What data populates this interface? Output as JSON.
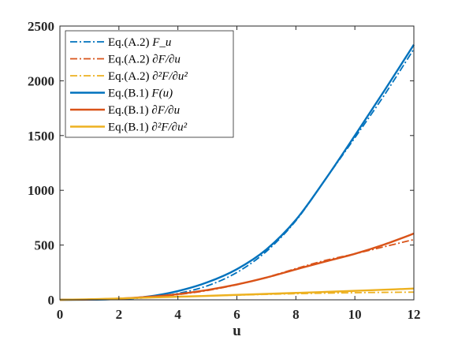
{
  "chart_data": {
    "type": "line",
    "title": "",
    "xlabel": "u",
    "ylabel": "",
    "xlim": [
      0,
      12
    ],
    "ylim": [
      0,
      2500
    ],
    "xticks": [
      "0",
      "2",
      "4",
      "6",
      "8",
      "10",
      "12"
    ],
    "yticks": [
      "0",
      "500",
      "1000",
      "1500",
      "2000",
      "2500"
    ],
    "grid": false,
    "legend_position": "top-left",
    "colors": {
      "blue": "#0072BD",
      "red": "#D95319",
      "yellow": "#EDB120",
      "axis": "#262626"
    },
    "series": [
      {
        "name": "Eq.(A.2)",
        "math": "F_u",
        "color": "#0072BD",
        "style": "dashdot",
        "x": [
          0,
          1,
          2,
          3,
          4,
          5,
          6,
          7,
          8,
          9,
          10,
          11,
          12
        ],
        "y": [
          0,
          1,
          6,
          22,
          58,
          128,
          250,
          442,
          722,
          1100,
          1480,
          1870,
          2290
        ]
      },
      {
        "name": "Eq.(A.2)",
        "math": "∂F/∂u",
        "color": "#D95319",
        "style": "dashdot",
        "x": [
          0,
          1,
          2,
          3,
          4,
          5,
          6,
          7,
          8,
          9,
          10,
          11,
          12
        ],
        "y": [
          0,
          3,
          10,
          24,
          48,
          85,
          138,
          205,
          285,
          360,
          420,
          485,
          550
        ]
      },
      {
        "name": "Eq.(A.2)",
        "math": "∂²F/∂u²",
        "color": "#EDB120",
        "style": "dashdot",
        "x": [
          0,
          1,
          2,
          3,
          4,
          5,
          6,
          7,
          8,
          9,
          10,
          11,
          12
        ],
        "y": [
          0,
          5,
          12,
          20,
          28,
          36,
          43,
          50,
          56,
          61,
          65,
          68,
          70
        ]
      },
      {
        "name": "Eq.(B.1)",
        "math": "F(u)",
        "color": "#0072BD",
        "style": "solid",
        "x": [
          0,
          1,
          2,
          3,
          4,
          5,
          6,
          7,
          8,
          9,
          10,
          11,
          12
        ],
        "y": [
          0,
          1,
          8,
          30,
          80,
          160,
          280,
          460,
          730,
          1100,
          1500,
          1910,
          2330
        ]
      },
      {
        "name": "Eq.(B.1)",
        "math": "∂F/∂u",
        "color": "#D95319",
        "style": "solid",
        "x": [
          0,
          1,
          2,
          3,
          4,
          5,
          6,
          7,
          8,
          9,
          10,
          11,
          12
        ],
        "y": [
          0,
          3,
          11,
          27,
          52,
          90,
          140,
          203,
          278,
          350,
          420,
          505,
          605
        ]
      },
      {
        "name": "Eq.(B.1)",
        "math": "∂²F/∂u²",
        "color": "#EDB120",
        "style": "solid",
        "x": [
          0,
          1,
          2,
          3,
          4,
          5,
          6,
          7,
          8,
          9,
          10,
          11,
          12
        ],
        "y": [
          0,
          5,
          12,
          20,
          28,
          36,
          45,
          54,
          63,
          72,
          82,
          92,
          103
        ]
      }
    ]
  }
}
